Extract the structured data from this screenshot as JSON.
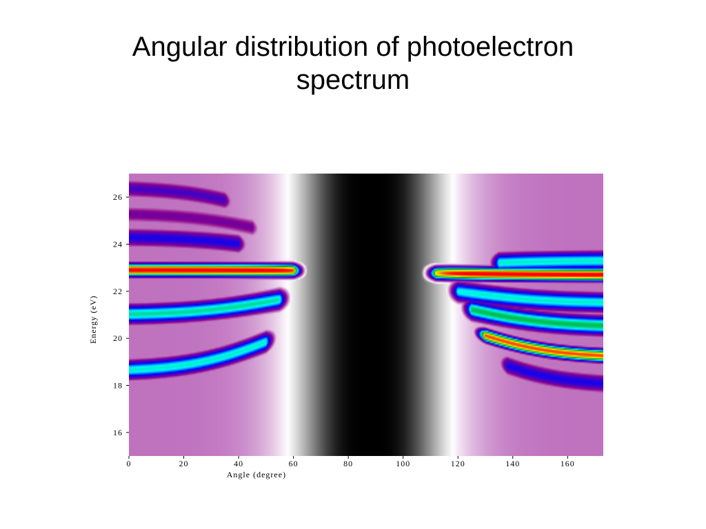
{
  "slide": {
    "title_line1": "Angular distribution of photoelectron",
    "title_line2": "spectrum"
  },
  "chart_data": {
    "type": "heatmap",
    "title": "",
    "xlabel": "Angle (degree)",
    "ylabel": "Energy (eV)",
    "xlim": [
      0,
      173
    ],
    "ylim": [
      15,
      27
    ],
    "x_ticks": [
      0,
      20,
      40,
      60,
      80,
      100,
      120,
      140,
      160
    ],
    "y_ticks": [
      16,
      18,
      20,
      22,
      24,
      26
    ],
    "colormap": [
      "#000000",
      "#ffffff",
      "#8b008b",
      "#0000ff",
      "#00ffff",
      "#00a000",
      "#ffff00",
      "#ff0000"
    ],
    "node": {
      "angle": 88,
      "energy": 22.85
    },
    "bands": [
      {
        "energy": 22.9,
        "from_angle": 0,
        "to_angle": 60,
        "intensity": 1.0
      },
      {
        "energy": 22.7,
        "from_angle": 112,
        "to_angle": 173,
        "intensity": 1.0
      },
      {
        "energy": 21.0,
        "from_angle": 0,
        "to_angle": 55,
        "intensity": 0.72
      },
      {
        "energy": 18.6,
        "from_angle": 0,
        "to_angle": 50,
        "intensity": 0.7
      },
      {
        "energy": 24.3,
        "from_angle": 0,
        "to_angle": 40,
        "intensity": 0.55
      },
      {
        "energy": 26.4,
        "from_angle": 0,
        "to_angle": 35,
        "intensity": 0.5
      },
      {
        "energy": 25.3,
        "from_angle": 0,
        "to_angle": 45,
        "intensity": 0.45
      },
      {
        "energy": 21.5,
        "from_angle": 120,
        "to_angle": 173,
        "intensity": 0.7
      },
      {
        "energy": 20.5,
        "from_angle": 125,
        "to_angle": 173,
        "intensity": 0.75
      },
      {
        "energy": 19.2,
        "from_angle": 130,
        "to_angle": 173,
        "intensity": 0.95
      },
      {
        "energy": 18.0,
        "from_angle": 138,
        "to_angle": 173,
        "intensity": 0.55
      },
      {
        "energy": 23.3,
        "from_angle": 135,
        "to_angle": 173,
        "intensity": 0.7
      }
    ]
  }
}
